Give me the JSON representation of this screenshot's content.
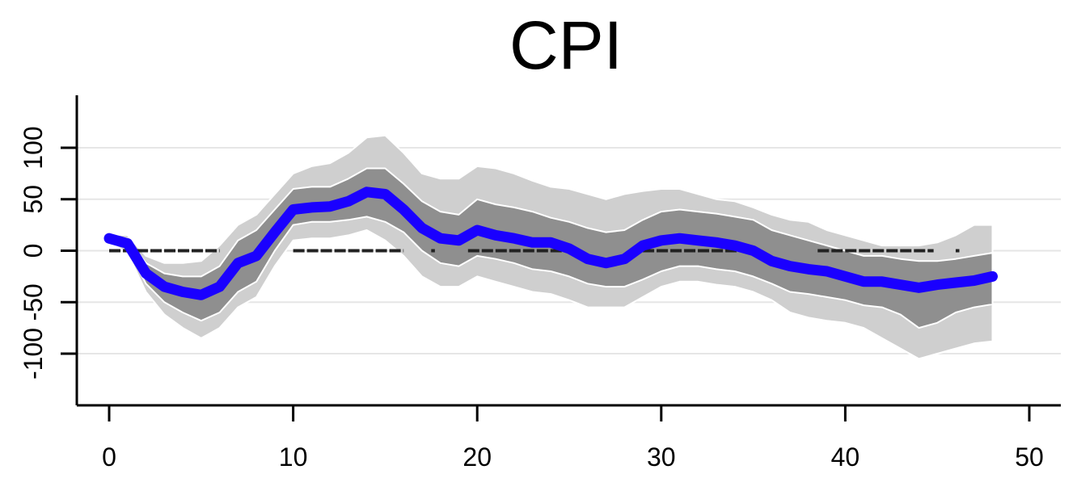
{
  "chart_data": {
    "type": "line",
    "title": "CPI",
    "xlabel": "",
    "ylabel": "",
    "xlim": [
      -2,
      52
    ],
    "ylim": [
      -150,
      150
    ],
    "x_ticks": [
      0,
      10,
      20,
      30,
      40,
      50
    ],
    "y_ticks": [
      -100,
      -50,
      0,
      50,
      100
    ],
    "x_tick_labels": [
      "0",
      "10",
      "20",
      "30",
      "40",
      "50"
    ],
    "y_tick_labels": [
      "-100",
      "-50",
      "0",
      "50",
      "100"
    ],
    "grid": "horizontal",
    "colors": {
      "line": "#1a00ff",
      "inner_band": "#8f8f8f",
      "outer_band": "#cfcfcf",
      "zero_dashes": "#222222",
      "grid": "#e6e6e6",
      "axis": "#000000"
    },
    "series": [
      {
        "x": [
          0,
          1,
          2,
          3,
          4,
          5,
          6,
          7,
          8,
          9,
          10,
          11,
          12,
          13,
          14,
          15,
          16,
          17,
          18,
          19,
          20,
          21,
          22,
          23,
          24,
          25,
          26,
          27,
          28,
          29,
          30,
          31,
          32,
          33,
          34,
          35,
          36,
          37,
          38,
          39,
          40,
          41,
          42,
          43,
          44,
          45,
          46,
          47,
          48
        ],
        "values": [
          12,
          7,
          -22,
          -35,
          -40,
          -43,
          -35,
          -12,
          -5,
          18,
          40,
          42,
          43,
          48,
          57,
          55,
          40,
          22,
          12,
          10,
          20,
          15,
          12,
          8,
          8,
          2,
          -8,
          -12,
          -8,
          5,
          10,
          12,
          10,
          8,
          5,
          0,
          -10,
          -15,
          -18,
          -20,
          -25,
          -30,
          -30,
          -33,
          -36,
          -33,
          -31,
          -29,
          -25
        ]
      }
    ],
    "bands": [
      {
        "x": [
          0,
          1,
          2,
          3,
          4,
          5,
          6,
          7,
          8,
          9,
          10,
          11,
          12,
          13,
          14,
          15,
          16,
          17,
          18,
          19,
          20,
          21,
          22,
          23,
          24,
          25,
          26,
          27,
          28,
          29,
          30,
          31,
          32,
          33,
          34,
          35,
          36,
          37,
          38,
          39,
          40,
          41,
          42,
          43,
          44,
          45,
          46,
          47,
          48
        ],
        "lower": [
          10,
          2,
          -32,
          -50,
          -60,
          -68,
          -60,
          -40,
          -30,
          0,
          25,
          28,
          28,
          30,
          33,
          28,
          18,
          0,
          -12,
          -15,
          -5,
          -8,
          -12,
          -18,
          -20,
          -25,
          -32,
          -35,
          -35,
          -28,
          -20,
          -15,
          -15,
          -18,
          -20,
          -25,
          -32,
          -40,
          -42,
          -45,
          -48,
          -53,
          -55,
          -62,
          -75,
          -70,
          -60,
          -55,
          -52
        ],
        "upper": [
          14,
          12,
          -12,
          -22,
          -25,
          -25,
          -15,
          10,
          20,
          40,
          60,
          62,
          62,
          70,
          80,
          80,
          65,
          48,
          38,
          35,
          50,
          45,
          42,
          38,
          32,
          28,
          22,
          18,
          20,
          30,
          38,
          40,
          38,
          36,
          33,
          30,
          20,
          15,
          10,
          5,
          0,
          -5,
          -5,
          -8,
          -10,
          -10,
          -8,
          -5,
          -2
        ]
      },
      {
        "x": [
          0,
          1,
          2,
          3,
          4,
          5,
          6,
          7,
          8,
          9,
          10,
          11,
          12,
          13,
          14,
          15,
          16,
          17,
          18,
          19,
          20,
          21,
          22,
          23,
          24,
          25,
          26,
          27,
          28,
          29,
          30,
          31,
          32,
          33,
          34,
          35,
          36,
          37,
          38,
          39,
          40,
          41,
          42,
          43,
          44,
          45,
          46,
          47,
          48
        ],
        "lower": [
          8,
          -2,
          -40,
          -62,
          -75,
          -85,
          -75,
          -55,
          -45,
          -15,
          10,
          12,
          12,
          15,
          20,
          10,
          -5,
          -25,
          -35,
          -35,
          -25,
          -30,
          -35,
          -40,
          -42,
          -48,
          -55,
          -55,
          -55,
          -45,
          -35,
          -30,
          -30,
          -33,
          -35,
          -40,
          -48,
          -60,
          -65,
          -68,
          -70,
          -75,
          -85,
          -95,
          -105,
          -100,
          -95,
          -90,
          -88
        ],
        "upper": [
          16,
          15,
          -5,
          -12,
          -12,
          -10,
          5,
          25,
          35,
          55,
          75,
          82,
          85,
          95,
          110,
          112,
          95,
          75,
          70,
          70,
          82,
          80,
          75,
          68,
          62,
          60,
          55,
          50,
          55,
          58,
          60,
          60,
          55,
          50,
          48,
          42,
          35,
          30,
          28,
          20,
          15,
          10,
          5,
          5,
          5,
          8,
          15,
          25,
          25
        ]
      }
    ],
    "zero_line_segments": [
      [
        0,
        6
      ],
      [
        10,
        16
      ],
      [
        17.5,
        17.7
      ],
      [
        19.5,
        25.5
      ],
      [
        29,
        35
      ],
      [
        38.5,
        44.8
      ],
      [
        46,
        46.2
      ]
    ]
  }
}
